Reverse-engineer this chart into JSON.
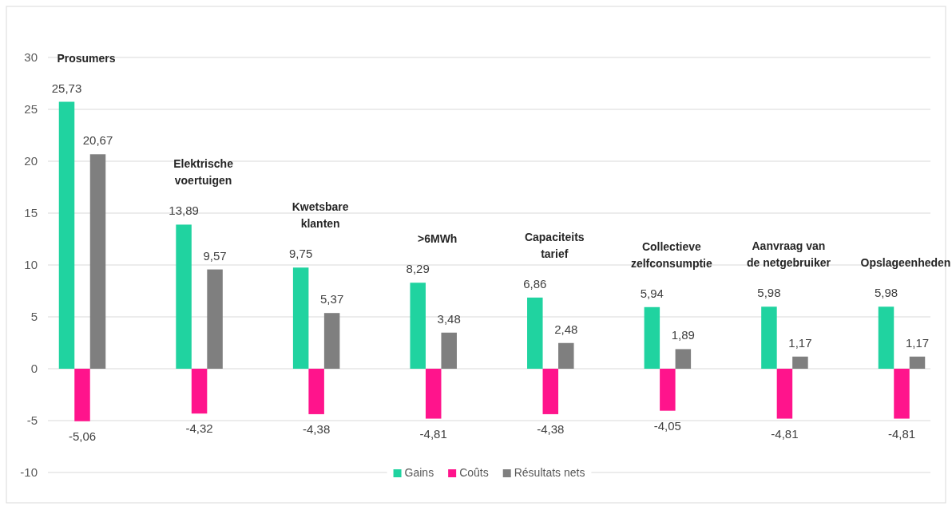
{
  "chart_data": {
    "type": "bar",
    "categories": [
      "Prosumers",
      "Elektrische voertuigen",
      "Kwetsbare klanten",
      ">6MWh",
      "Capaciteits tarief",
      "Collectieve zelfconsumptie",
      "Aanvraag van de netgebruiker",
      "Opslageenheden"
    ],
    "series": [
      {
        "name": "Gains",
        "color": "#20d3a0",
        "values": [
          25.73,
          13.89,
          9.75,
          8.29,
          6.86,
          5.94,
          5.98,
          5.98
        ],
        "value_labels": [
          "25,73",
          "13,89",
          "9,75",
          "8,29",
          "6,86",
          "5,94",
          "5,98",
          "5,98"
        ]
      },
      {
        "name": "Coûts",
        "color": "#ff148c",
        "values": [
          -5.06,
          -4.32,
          -4.38,
          -4.81,
          -4.38,
          -4.05,
          -4.81,
          -4.81
        ],
        "value_labels": [
          "-5,06",
          "-4,32",
          "-4,38",
          "-4,81",
          "-4,38",
          "-4,05",
          "-4,81",
          "-4,81"
        ]
      },
      {
        "name": "Résultats nets",
        "color": "#7f7f7f",
        "values": [
          20.67,
          9.57,
          5.37,
          3.48,
          2.48,
          1.89,
          1.17,
          1.17
        ],
        "value_labels": [
          "20,67",
          "9,57",
          "5,37",
          "3,48",
          "2,48",
          "1,89",
          "1,17",
          "1,17"
        ]
      }
    ],
    "ylim": [
      -10,
      30
    ],
    "yticks": [
      -10,
      -5,
      0,
      5,
      10,
      15,
      20,
      25,
      30
    ],
    "grid": "y",
    "legend": "bottom"
  }
}
